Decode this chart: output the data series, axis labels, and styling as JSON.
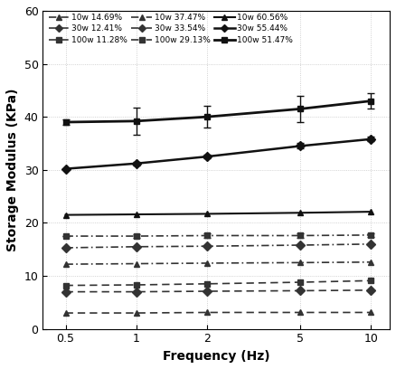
{
  "x": [
    0.5,
    1,
    2,
    5,
    10
  ],
  "series": [
    {
      "label": "10w 14.69%",
      "y": [
        3.0,
        3.0,
        3.1,
        3.1,
        3.1
      ],
      "yerr": [
        0.0,
        0.0,
        0.0,
        0.0,
        0.0
      ],
      "linestyle": "dashed",
      "marker": "^",
      "color": "#333333",
      "linewidth": 1.2
    },
    {
      "label": "10w 37.47%",
      "y": [
        12.2,
        12.3,
        12.4,
        12.5,
        12.6
      ],
      "yerr": [
        0.0,
        0.0,
        0.0,
        0.0,
        0.0
      ],
      "linestyle": "dashdot",
      "marker": "^",
      "color": "#333333",
      "linewidth": 1.2
    },
    {
      "label": "10w 60.56%",
      "y": [
        21.5,
        21.6,
        21.7,
        21.9,
        22.1
      ],
      "yerr": [
        0.0,
        0.0,
        0.0,
        0.0,
        0.0
      ],
      "linestyle": "solid",
      "marker": "^",
      "color": "#111111",
      "linewidth": 1.5
    },
    {
      "label": "30w 12.41%",
      "y": [
        7.0,
        7.0,
        7.1,
        7.2,
        7.3
      ],
      "yerr": [
        0.0,
        0.0,
        0.0,
        0.0,
        0.0
      ],
      "linestyle": "dashed",
      "marker": "D",
      "color": "#333333",
      "linewidth": 1.2
    },
    {
      "label": "30w 33.54%",
      "y": [
        15.3,
        15.5,
        15.6,
        15.8,
        16.0
      ],
      "yerr": [
        0.0,
        0.0,
        0.0,
        0.0,
        0.0
      ],
      "linestyle": "dashdot",
      "marker": "D",
      "color": "#333333",
      "linewidth": 1.2
    },
    {
      "label": "30w 55.44%",
      "y": [
        30.2,
        31.2,
        32.5,
        34.5,
        35.8
      ],
      "yerr": [
        0.0,
        0.3,
        0.4,
        0.5,
        0.4
      ],
      "linestyle": "solid",
      "marker": "D",
      "color": "#111111",
      "linewidth": 1.8
    },
    {
      "label": "100w 11.28%",
      "y": [
        8.2,
        8.3,
        8.5,
        8.8,
        9.1
      ],
      "yerr": [
        0.0,
        0.0,
        0.0,
        0.0,
        0.0
      ],
      "linestyle": "dashed",
      "marker": "s",
      "color": "#333333",
      "linewidth": 1.2
    },
    {
      "label": "100w 29.13%",
      "y": [
        17.5,
        17.5,
        17.6,
        17.6,
        17.7
      ],
      "yerr": [
        0.0,
        0.4,
        0.4,
        0.4,
        0.3
      ],
      "linestyle": "dashdot",
      "marker": "s",
      "color": "#333333",
      "linewidth": 1.2
    },
    {
      "label": "100w 51.47%",
      "y": [
        39.0,
        39.2,
        40.0,
        41.5,
        43.0
      ],
      "yerr": [
        0.5,
        2.5,
        2.0,
        2.5,
        1.5
      ],
      "linestyle": "solid",
      "marker": "s",
      "color": "#111111",
      "linewidth": 2.0
    }
  ],
  "legend_order": [
    0,
    3,
    6,
    1,
    4,
    7,
    2,
    5,
    8
  ],
  "xlabel": "Frequency (Hz)",
  "ylabel": "Storage Modulus (KPa)",
  "xlim": [
    0.4,
    12
  ],
  "ylim": [
    0,
    60
  ],
  "yticks": [
    0,
    10,
    20,
    30,
    40,
    50,
    60
  ],
  "xticks": [
    0.5,
    1,
    2,
    5,
    10
  ],
  "xtick_labels": [
    "0.5",
    "1",
    "2",
    "5",
    "10"
  ],
  "background_color": "#ffffff",
  "grid_color": "#aaaaaa"
}
